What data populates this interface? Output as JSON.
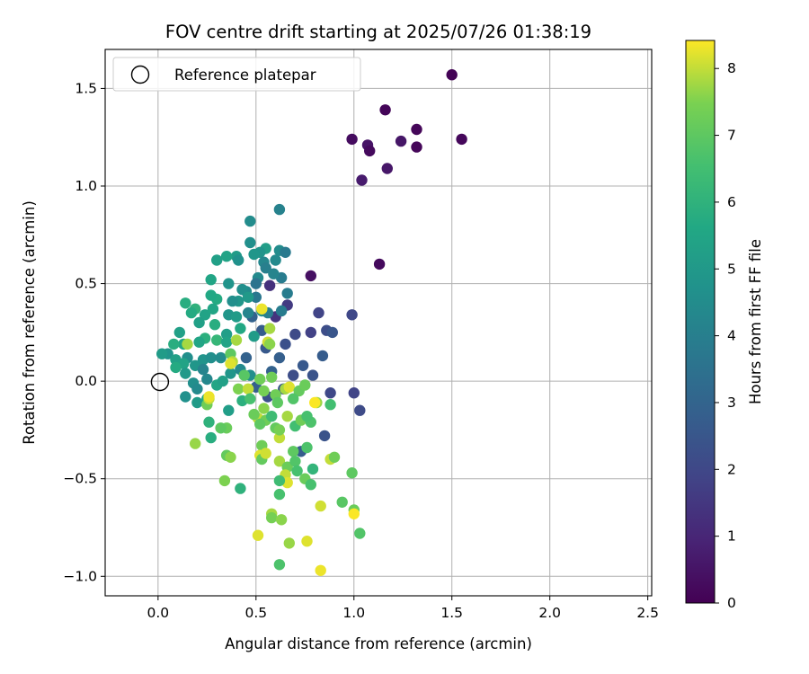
{
  "chart_data": {
    "type": "scatter",
    "title": "FOV centre drift starting at 2025/07/26 01:38:19",
    "xlabel": "Angular distance from reference (arcmin)",
    "ylabel": "Rotation from reference (arcmin)",
    "xlim": [
      -0.27,
      2.52
    ],
    "ylim": [
      -1.1,
      1.7
    ],
    "xticks": [
      0.0,
      0.5,
      1.0,
      1.5,
      2.0,
      2.5
    ],
    "xtick_labels": [
      "0.0",
      "0.5",
      "1.0",
      "1.5",
      "2.0",
      "2.5"
    ],
    "yticks": [
      -1.0,
      -0.5,
      0.0,
      0.5,
      1.0,
      1.5
    ],
    "ytick_labels": [
      "−1.0",
      "−0.5",
      "0.0",
      "0.5",
      "1.0",
      "1.5"
    ],
    "grid": true,
    "legend": {
      "location": "upper-left",
      "entries": [
        "Reference platepar"
      ]
    },
    "reference_point": {
      "x": 0.0,
      "y": 0.0,
      "marker": "open-circle"
    },
    "colorbar": {
      "label": "Hours from first FF file",
      "colormap": "viridis",
      "range": [
        0,
        8.42
      ],
      "ticks": [
        0,
        1,
        2,
        3,
        4,
        5,
        6,
        7,
        8
      ],
      "tick_labels": [
        "0",
        "1",
        "2",
        "3",
        "4",
        "5",
        "6",
        "7",
        "8"
      ]
    },
    "points": [
      [
        1.5,
        1.57,
        0.05
      ],
      [
        1.16,
        1.39,
        0.1
      ],
      [
        1.32,
        1.29,
        0.15
      ],
      [
        1.55,
        1.24,
        0.2
      ],
      [
        0.99,
        1.24,
        0.3
      ],
      [
        1.07,
        1.21,
        0.5
      ],
      [
        1.24,
        1.23,
        0.55
      ],
      [
        1.32,
        1.2,
        0.15
      ],
      [
        1.08,
        1.18,
        0.25
      ],
      [
        1.17,
        1.09,
        0.6
      ],
      [
        1.04,
        1.03,
        0.7
      ],
      [
        1.13,
        0.6,
        0.25
      ],
      [
        0.78,
        0.54,
        0.4
      ],
      [
        0.57,
        0.49,
        1.3
      ],
      [
        0.66,
        0.39,
        1.6
      ],
      [
        0.82,
        0.35,
        1.9
      ],
      [
        0.99,
        0.34,
        2.0
      ],
      [
        0.6,
        0.33,
        1.4
      ],
      [
        0.86,
        0.26,
        2.2
      ],
      [
        0.89,
        0.25,
        2.5
      ],
      [
        0.78,
        0.25,
        1.8
      ],
      [
        0.7,
        0.24,
        2.1
      ],
      [
        0.65,
        0.19,
        2.3
      ],
      [
        0.84,
        0.13,
        2.7
      ],
      [
        0.74,
        0.08,
        2.6
      ],
      [
        0.79,
        0.03,
        2.4
      ],
      [
        0.69,
        0.03,
        2.2
      ],
      [
        0.88,
        -0.06,
        2.0
      ],
      [
        1.0,
        -0.06,
        1.9
      ],
      [
        1.03,
        -0.15,
        2.1
      ],
      [
        0.85,
        -0.28,
        2.4
      ],
      [
        0.55,
        0.17,
        2.6
      ],
      [
        0.62,
        0.12,
        2.8
      ],
      [
        0.73,
        -0.36,
        2.7
      ],
      [
        0.64,
        -0.04,
        2.5
      ],
      [
        0.56,
        -0.08,
        2.3
      ],
      [
        0.5,
        -0.03,
        2.8
      ],
      [
        0.45,
        0.12,
        2.9
      ],
      [
        0.58,
        0.05,
        2.9
      ],
      [
        0.53,
        0.26,
        2.7
      ],
      [
        0.48,
        0.33,
        2.9
      ],
      [
        0.62,
        0.88,
        4.1
      ],
      [
        0.47,
        0.82,
        4.5
      ],
      [
        0.47,
        0.71,
        4.6
      ],
      [
        0.62,
        0.67,
        4.5
      ],
      [
        0.65,
        0.66,
        3.8
      ],
      [
        0.55,
        0.68,
        5.2
      ],
      [
        0.52,
        0.66,
        4.8
      ],
      [
        0.49,
        0.65,
        4.9
      ],
      [
        0.4,
        0.64,
        5.1
      ],
      [
        0.35,
        0.64,
        5.4
      ],
      [
        0.3,
        0.62,
        5.3
      ],
      [
        0.41,
        0.62,
        4.7
      ],
      [
        0.54,
        0.61,
        4.3
      ],
      [
        0.55,
        0.58,
        4.0
      ],
      [
        0.63,
        0.53,
        3.9
      ],
      [
        0.59,
        0.55,
        4.2
      ],
      [
        0.51,
        0.53,
        4.4
      ],
      [
        0.5,
        0.5,
        3.6
      ],
      [
        0.27,
        0.52,
        5.5
      ],
      [
        0.36,
        0.5,
        4.8
      ],
      [
        0.66,
        0.45,
        3.9
      ],
      [
        0.45,
        0.46,
        4.4
      ],
      [
        0.43,
        0.47,
        4.6
      ],
      [
        0.5,
        0.43,
        3.7
      ],
      [
        0.46,
        0.43,
        5.0
      ],
      [
        0.41,
        0.41,
        4.9
      ],
      [
        0.38,
        0.41,
        4.6
      ],
      [
        0.3,
        0.42,
        5.7
      ],
      [
        0.27,
        0.44,
        5.6
      ],
      [
        0.14,
        0.4,
        5.8
      ],
      [
        0.19,
        0.37,
        6.0
      ],
      [
        0.17,
        0.35,
        5.7
      ],
      [
        0.24,
        0.34,
        5.4
      ],
      [
        0.28,
        0.37,
        5.5
      ],
      [
        0.36,
        0.34,
        4.9
      ],
      [
        0.46,
        0.35,
        4.2
      ],
      [
        0.4,
        0.33,
        5.1
      ],
      [
        0.53,
        0.36,
        4.6
      ],
      [
        0.56,
        0.35,
        4.0
      ],
      [
        0.63,
        0.36,
        3.9
      ],
      [
        0.21,
        0.3,
        5.3
      ],
      [
        0.29,
        0.29,
        5.8
      ],
      [
        0.42,
        0.27,
        5.6
      ],
      [
        0.49,
        0.23,
        5.1
      ],
      [
        0.35,
        0.24,
        5.2
      ],
      [
        0.24,
        0.22,
        5.9
      ],
      [
        0.11,
        0.25,
        5.3
      ],
      [
        0.21,
        0.2,
        5.5
      ],
      [
        0.3,
        0.21,
        6.2
      ],
      [
        0.35,
        0.2,
        5.4
      ],
      [
        0.13,
        0.19,
        5.5
      ],
      [
        0.08,
        0.19,
        5.8
      ],
      [
        0.15,
        0.12,
        4.6
      ],
      [
        0.05,
        0.14,
        4.8
      ],
      [
        0.02,
        0.14,
        5.1
      ],
      [
        0.09,
        0.11,
        5.3
      ],
      [
        0.13,
        0.09,
        5.4
      ],
      [
        0.09,
        0.07,
        5.7
      ],
      [
        0.14,
        0.04,
        5.0
      ],
      [
        0.19,
        0.08,
        4.9
      ],
      [
        0.23,
        0.11,
        4.8
      ],
      [
        0.27,
        0.12,
        4.6
      ],
      [
        0.32,
        0.12,
        4.5
      ],
      [
        0.23,
        0.06,
        4.2
      ],
      [
        0.25,
        0.01,
        4.3
      ],
      [
        0.18,
        -0.01,
        4.6
      ],
      [
        0.2,
        -0.04,
        4.4
      ],
      [
        0.14,
        -0.08,
        4.7
      ],
      [
        0.2,
        -0.11,
        5.1
      ],
      [
        0.25,
        -0.09,
        5.6
      ],
      [
        0.3,
        -0.02,
        5.5
      ],
      [
        0.33,
        0.0,
        5.3
      ],
      [
        0.37,
        0.04,
        4.9
      ],
      [
        0.42,
        0.06,
        4.4
      ],
      [
        0.47,
        0.03,
        4.6
      ],
      [
        0.26,
        -0.21,
        6.0
      ],
      [
        0.36,
        -0.15,
        5.2
      ],
      [
        0.43,
        -0.1,
        5.9
      ],
      [
        0.27,
        -0.29,
        5.8
      ],
      [
        0.42,
        -0.55,
        6.0
      ],
      [
        0.6,
        0.62,
        4.4
      ],
      [
        0.4,
        0.21,
        7.8
      ],
      [
        0.56,
        0.2,
        8.1
      ],
      [
        0.37,
        0.14,
        7.0
      ],
      [
        0.38,
        0.1,
        7.9
      ],
      [
        0.44,
        0.03,
        6.9
      ],
      [
        0.52,
        0.01,
        7.3
      ],
      [
        0.58,
        0.02,
        7.3
      ],
      [
        0.37,
        0.09,
        8.2
      ],
      [
        0.41,
        -0.04,
        7.5
      ],
      [
        0.46,
        -0.04,
        8.0
      ],
      [
        0.54,
        -0.05,
        7.4
      ],
      [
        0.6,
        -0.07,
        7.3
      ],
      [
        0.65,
        -0.04,
        7.8
      ],
      [
        0.67,
        -0.03,
        8.2
      ],
      [
        0.72,
        -0.05,
        7.1
      ],
      [
        0.75,
        -0.02,
        7.2
      ],
      [
        0.81,
        -0.11,
        7.7
      ],
      [
        0.88,
        -0.12,
        6.5
      ],
      [
        0.69,
        -0.09,
        6.8
      ],
      [
        0.61,
        -0.11,
        7.0
      ],
      [
        0.54,
        -0.14,
        7.6
      ],
      [
        0.51,
        -0.19,
        8.0
      ],
      [
        0.55,
        -0.2,
        7.3
      ],
      [
        0.58,
        -0.18,
        6.4
      ],
      [
        0.47,
        -0.09,
        6.6
      ],
      [
        0.49,
        -0.17,
        7.2
      ],
      [
        0.6,
        -0.24,
        7.1
      ],
      [
        0.62,
        -0.29,
        8.0
      ],
      [
        0.66,
        -0.18,
        7.8
      ],
      [
        0.7,
        -0.23,
        6.5
      ],
      [
        0.62,
        -0.25,
        7.4
      ],
      [
        0.73,
        -0.2,
        7.3
      ],
      [
        0.78,
        -0.21,
        6.7
      ],
      [
        0.76,
        -0.18,
        6.6
      ],
      [
        0.52,
        -0.22,
        7.0
      ],
      [
        0.53,
        -0.33,
        7.3
      ],
      [
        0.52,
        -0.38,
        8.2
      ],
      [
        0.53,
        -0.4,
        7.1
      ],
      [
        0.62,
        -0.41,
        7.8
      ],
      [
        0.66,
        -0.44,
        7.2
      ],
      [
        0.69,
        -0.36,
        7.0
      ],
      [
        0.65,
        -0.48,
        8.0
      ],
      [
        0.7,
        -0.41,
        6.8
      ],
      [
        0.76,
        -0.34,
        6.7
      ],
      [
        0.79,
        -0.45,
        6.1
      ],
      [
        0.88,
        -0.4,
        8.0
      ],
      [
        0.9,
        -0.39,
        7.3
      ],
      [
        0.99,
        -0.47,
        7.0
      ],
      [
        0.75,
        -0.5,
        7.2
      ],
      [
        0.71,
        -0.46,
        6.6
      ],
      [
        0.66,
        -0.52,
        8.2
      ],
      [
        0.78,
        -0.53,
        6.6
      ],
      [
        0.62,
        -0.51,
        6.4
      ],
      [
        0.62,
        -0.58,
        6.6
      ],
      [
        0.83,
        -0.64,
        8.1
      ],
      [
        0.94,
        -0.62,
        6.9
      ],
      [
        1.0,
        -0.66,
        7.2
      ],
      [
        1.0,
        -0.68,
        8.4
      ],
      [
        1.03,
        -0.78,
        6.8
      ],
      [
        0.58,
        -0.68,
        7.8
      ],
      [
        0.58,
        -0.7,
        7.4
      ],
      [
        0.63,
        -0.71,
        7.6
      ],
      [
        0.67,
        -0.83,
        7.7
      ],
      [
        0.76,
        -0.82,
        8.2
      ],
      [
        0.51,
        -0.79,
        8.2
      ],
      [
        0.62,
        -0.94,
        6.7
      ],
      [
        0.83,
        -0.97,
        8.3
      ],
      [
        0.19,
        -0.32,
        7.7
      ],
      [
        0.34,
        -0.51,
        7.5
      ],
      [
        0.35,
        -0.38,
        7.1
      ],
      [
        0.37,
        -0.39,
        7.6
      ],
      [
        0.35,
        -0.24,
        7.2
      ],
      [
        0.32,
        -0.24,
        7.0
      ],
      [
        0.25,
        -0.12,
        7.3
      ],
      [
        0.26,
        -0.09,
        8.0
      ],
      [
        0.26,
        -0.08,
        8.3
      ],
      [
        0.15,
        0.19,
        7.8
      ],
      [
        0.53,
        0.37,
        8.3
      ],
      [
        0.57,
        0.27,
        7.8
      ],
      [
        0.57,
        0.19,
        7.6
      ],
      [
        0.55,
        -0.37,
        8.1
      ],
      [
        0.8,
        -0.11,
        8.4
      ]
    ]
  }
}
